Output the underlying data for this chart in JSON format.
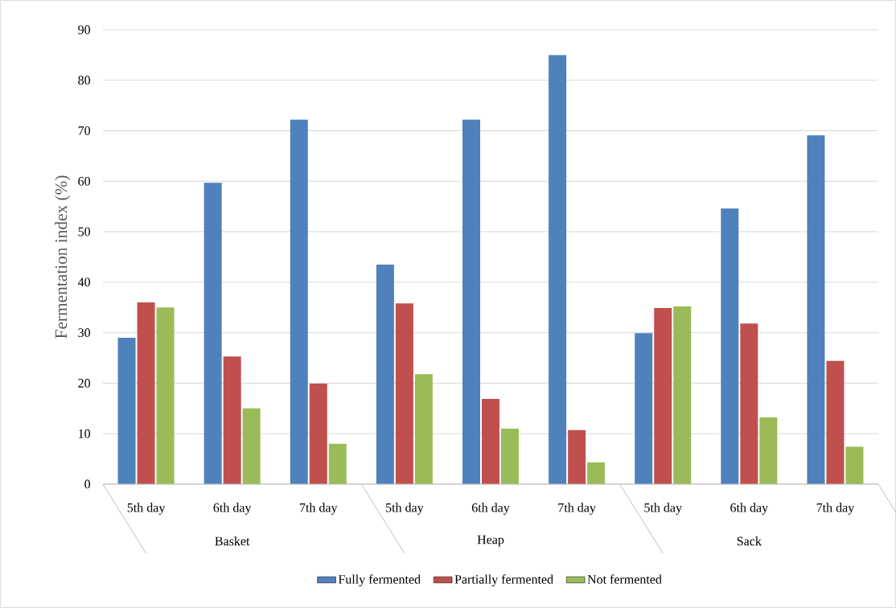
{
  "chart_data": {
    "type": "bar",
    "ylabel": "Fermentation index (%)",
    "categories": [
      "5th day",
      "6th day",
      "7th day",
      "5th day",
      "6th day",
      "7th day",
      "5th day",
      "6th day",
      "7th day"
    ],
    "annotations": [
      "Basket",
      "Heap",
      "Sack"
    ],
    "series": [
      {
        "name": "Fully fermented",
        "color": "#4f81bd",
        "values": [
          29.0,
          59.7,
          72.2,
          43.5,
          72.2,
          85.0,
          29.9,
          54.6,
          69.1
        ]
      },
      {
        "name": "Partially fermented",
        "color": "#c0504d",
        "values": [
          36.0,
          25.3,
          19.9,
          35.8,
          16.9,
          10.7,
          34.9,
          31.8,
          24.4
        ]
      },
      {
        "name": "Not fermented",
        "color": "#9bbb59",
        "values": [
          35.0,
          15.0,
          8.0,
          21.8,
          11.0,
          4.3,
          35.2,
          13.2,
          7.4
        ]
      }
    ],
    "ylim": [
      0,
      90
    ],
    "yticks": [
      0,
      10,
      20,
      30,
      40,
      50,
      60,
      70,
      80,
      90
    ],
    "grid": "y",
    "legend": "bottom"
  }
}
